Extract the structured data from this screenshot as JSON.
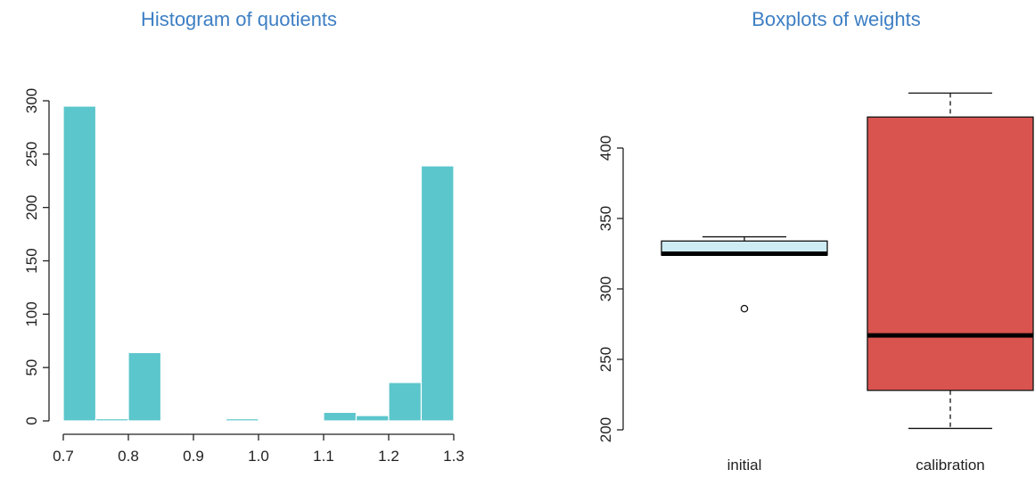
{
  "colors": {
    "title": "#3d7fc4",
    "histogram_fill": "#5bc6cc",
    "box_initial_fill": "#cdecf3",
    "box_calibration_fill": "#d9534f"
  },
  "chart_data": [
    {
      "type": "bar",
      "subtype": "histogram",
      "title": "Histogram of quotients",
      "xlabel": "",
      "ylabel": "",
      "xlim": [
        0.7,
        1.3
      ],
      "ylim": [
        0,
        300
      ],
      "bins": [
        {
          "start": 0.7,
          "end": 0.75,
          "count": 295
        },
        {
          "start": 0.75,
          "end": 0.8,
          "count": 2
        },
        {
          "start": 0.8,
          "end": 0.85,
          "count": 64
        },
        {
          "start": 0.85,
          "end": 0.9,
          "count": 0
        },
        {
          "start": 0.9,
          "end": 0.95,
          "count": 0
        },
        {
          "start": 0.95,
          "end": 1.0,
          "count": 2
        },
        {
          "start": 1.0,
          "end": 1.05,
          "count": 0
        },
        {
          "start": 1.05,
          "end": 1.1,
          "count": 0
        },
        {
          "start": 1.1,
          "end": 1.15,
          "count": 8
        },
        {
          "start": 1.15,
          "end": 1.2,
          "count": 5
        },
        {
          "start": 1.2,
          "end": 1.25,
          "count": 36
        },
        {
          "start": 1.25,
          "end": 1.3,
          "count": 239
        }
      ],
      "x_ticks": [
        "0.7",
        "0.8",
        "0.9",
        "1.0",
        "1.1",
        "1.2",
        "1.3"
      ],
      "y_ticks": [
        "0",
        "50",
        "100",
        "150",
        "200",
        "250",
        "300"
      ],
      "grid": false
    },
    {
      "type": "boxplot",
      "title": "Boxplots of weights",
      "xlabel": "",
      "ylabel": "",
      "ylim": [
        200,
        440
      ],
      "categories": [
        "initial",
        "calibration"
      ],
      "boxes": [
        {
          "name": "initial",
          "min": 324,
          "q1": 324,
          "median": 325,
          "q3": 334,
          "max": 337,
          "outliers": [
            286
          ]
        },
        {
          "name": "calibration",
          "min": 201,
          "q1": 228,
          "median": 267,
          "q3": 422,
          "max": 439,
          "outliers": []
        }
      ],
      "y_ticks": [
        "200",
        "250",
        "300",
        "350",
        "400"
      ],
      "grid": false
    }
  ]
}
